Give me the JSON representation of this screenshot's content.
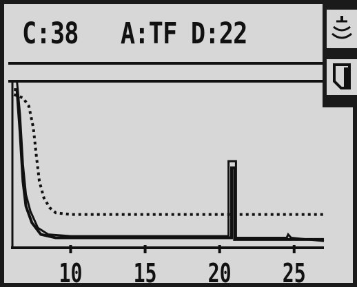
{
  "header": {
    "readout": "C:38   A:TF D:22"
  },
  "side_buttons": [
    {
      "icon": "wave-signal-icon"
    },
    {
      "icon": "page-icon"
    }
  ],
  "chart_data": {
    "type": "line",
    "x_axis_ticks": [
      "10",
      "15",
      "20",
      "25"
    ],
    "xlim": [
      6,
      27
    ],
    "series": [
      {
        "style": "solid",
        "points": [
          [
            6.2,
            95
          ],
          [
            6.4,
            95
          ],
          [
            6.6,
            70
          ],
          [
            6.8,
            40
          ],
          [
            7.0,
            25
          ],
          [
            7.4,
            15
          ],
          [
            8.0,
            8
          ],
          [
            9,
            6
          ],
          [
            20.8,
            6
          ],
          [
            20.8,
            48
          ],
          [
            21.0,
            48
          ],
          [
            21.0,
            5
          ],
          [
            27,
            5
          ]
        ]
      },
      {
        "style": "solid-secondary",
        "points": [
          [
            6.2,
            100
          ],
          [
            6.4,
            100
          ],
          [
            6.6,
            80
          ],
          [
            6.8,
            50
          ],
          [
            7.0,
            32
          ],
          [
            7.3,
            22
          ],
          [
            7.8,
            12
          ],
          [
            8.5,
            8
          ],
          [
            10,
            7
          ],
          [
            20.6,
            7
          ],
          [
            20.6,
            52
          ],
          [
            21.1,
            52
          ],
          [
            21.1,
            6
          ],
          [
            24.5,
            6
          ],
          [
            24.6,
            8
          ],
          [
            24.8,
            6
          ],
          [
            27,
            4
          ]
        ]
      },
      {
        "style": "dotted",
        "points": [
          [
            6.2,
            92
          ],
          [
            6.8,
            90
          ],
          [
            7.2,
            85
          ],
          [
            7.5,
            72
          ],
          [
            7.7,
            55
          ],
          [
            7.9,
            40
          ],
          [
            8.2,
            30
          ],
          [
            8.6,
            24
          ],
          [
            9.0,
            21
          ],
          [
            10,
            20
          ],
          [
            27,
            20
          ]
        ]
      }
    ]
  }
}
